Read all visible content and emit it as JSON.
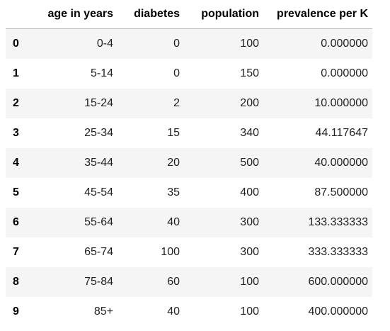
{
  "table": {
    "columns": [
      "age in years",
      "diabetes",
      "population",
      "prevalence per K"
    ],
    "rows": [
      {
        "index": "0",
        "age": "0-4",
        "diabetes": "0",
        "population": "100",
        "prevalence": "0.000000"
      },
      {
        "index": "1",
        "age": "5-14",
        "diabetes": "0",
        "population": "150",
        "prevalence": "0.000000"
      },
      {
        "index": "2",
        "age": "15-24",
        "diabetes": "2",
        "population": "200",
        "prevalence": "10.000000"
      },
      {
        "index": "3",
        "age": "25-34",
        "diabetes": "15",
        "population": "340",
        "prevalence": "44.117647"
      },
      {
        "index": "4",
        "age": "35-44",
        "diabetes": "20",
        "population": "500",
        "prevalence": "40.000000"
      },
      {
        "index": "5",
        "age": "45-54",
        "diabetes": "35",
        "population": "400",
        "prevalence": "87.500000"
      },
      {
        "index": "6",
        "age": "55-64",
        "diabetes": "40",
        "population": "300",
        "prevalence": "133.333333"
      },
      {
        "index": "7",
        "age": "65-74",
        "diabetes": "100",
        "population": "300",
        "prevalence": "333.333333"
      },
      {
        "index": "8",
        "age": "75-84",
        "diabetes": "60",
        "population": "100",
        "prevalence": "600.000000"
      },
      {
        "index": "9",
        "age": "85+",
        "diabetes": "40",
        "population": "100",
        "prevalence": "400.000000"
      }
    ]
  },
  "colors": {
    "stripe": "#f5f5f5",
    "header_rule": "#bdbdbd"
  }
}
